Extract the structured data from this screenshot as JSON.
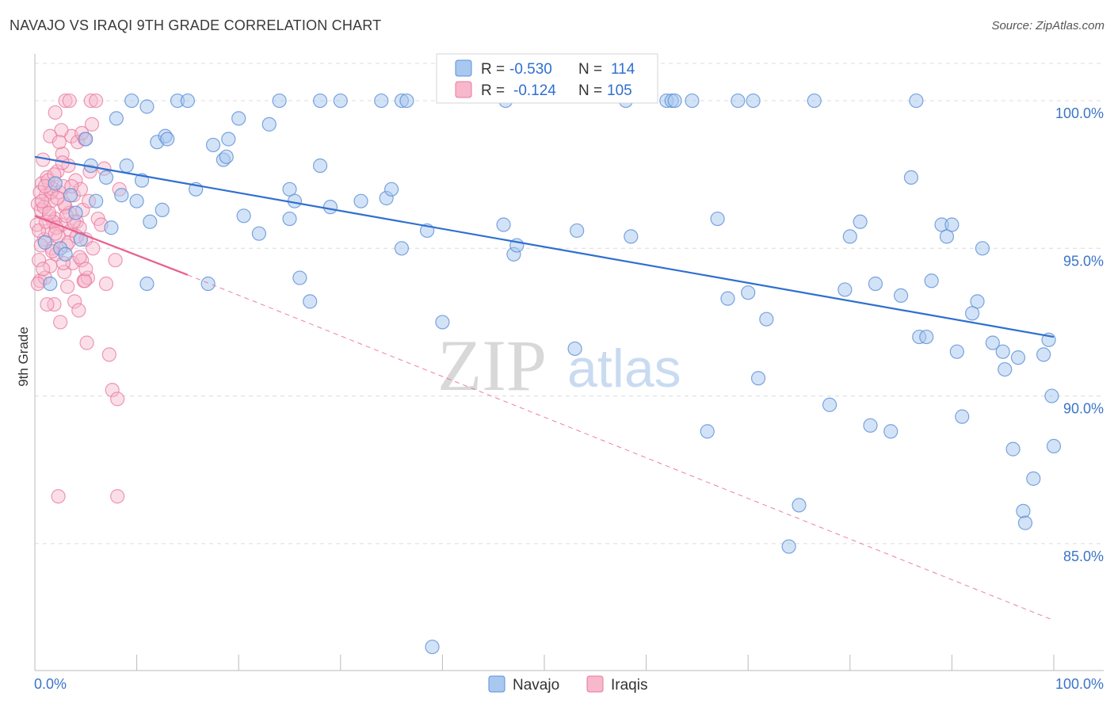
{
  "title": "NAVAJO VS IRAQI 9TH GRADE CORRELATION CHART",
  "source": "Source: ZipAtlas.com",
  "watermark": {
    "zip": "ZIP",
    "atlas": "atlas"
  },
  "colors": {
    "navajo_fill": "#a8c8f0",
    "navajo_stroke": "#5b8fd6",
    "navajo_line": "#2e6fd0",
    "iraqi_fill": "#f7b8cc",
    "iraqi_stroke": "#e8789e",
    "iraqi_line": "#e8608c",
    "grid": "#dcdcdc",
    "axis_label": "#3b74c9"
  },
  "legend": {
    "navajo": {
      "r_label": "R =",
      "r_value": "-0.530",
      "n_label": "N =",
      "n_value": "114"
    },
    "iraqi": {
      "r_label": "R =",
      "r_value": "-0.124",
      "n_label": "N =",
      "n_value": "105"
    }
  },
  "chart_data": {
    "type": "scatter",
    "title": "NAVAJO VS IRAQI 9TH GRADE CORRELATION CHART",
    "xlabel": "",
    "ylabel": "9th Grade",
    "x_tick_labels": [
      "0.0%",
      "100.0%"
    ],
    "y_tick_labels": [
      "100.0%",
      "95.0%",
      "90.0%",
      "85.0%"
    ],
    "y_ticks": [
      100,
      95,
      90,
      85
    ],
    "xlim": [
      0,
      100
    ],
    "ylim": [
      80.7,
      101.8
    ],
    "series": [
      {
        "name": "Navajo",
        "trend": {
          "x": [
            0,
            100
          ],
          "y": [
            98.1,
            92.0
          ],
          "dashed_to": null
        },
        "points": [
          [
            1,
            95.2
          ],
          [
            1.5,
            93.8
          ],
          [
            2,
            97.2
          ],
          [
            2.5,
            95
          ],
          [
            3,
            94.8
          ],
          [
            3.5,
            96.8
          ],
          [
            4,
            96.2
          ],
          [
            4.5,
            95.3
          ],
          [
            5,
            98.7
          ],
          [
            5.5,
            97.8
          ],
          [
            6,
            96.6
          ],
          [
            7,
            97.4
          ],
          [
            7.5,
            95.7
          ],
          [
            8,
            99.4
          ],
          [
            8.5,
            96.8
          ],
          [
            9,
            97.8
          ],
          [
            9.5,
            100
          ],
          [
            10,
            96.6
          ],
          [
            10.5,
            97.3
          ],
          [
            11,
            99.8
          ],
          [
            11.3,
            95.9
          ],
          [
            12,
            98.6
          ],
          [
            12.5,
            96.3
          ],
          [
            12.8,
            98.8
          ],
          [
            13,
            98.7
          ],
          [
            14,
            100
          ],
          [
            15,
            100
          ],
          [
            15.8,
            97
          ],
          [
            17,
            93.8
          ],
          [
            17.5,
            98.5
          ],
          [
            18.5,
            98
          ],
          [
            18.8,
            98.1
          ],
          [
            19,
            98.7
          ],
          [
            20,
            99.4
          ],
          [
            20.5,
            96.1
          ],
          [
            22,
            95.5
          ],
          [
            23,
            99.2
          ],
          [
            24,
            100
          ],
          [
            25,
            97
          ],
          [
            25.5,
            96.6
          ],
          [
            25,
            96
          ],
          [
            26,
            94
          ],
          [
            27,
            93.2
          ],
          [
            28,
            97.8
          ],
          [
            28,
            100
          ],
          [
            29,
            96.4
          ],
          [
            30,
            100
          ],
          [
            32,
            96.6
          ],
          [
            34,
            100
          ],
          [
            34.5,
            96.7
          ],
          [
            35,
            97
          ],
          [
            36,
            95
          ],
          [
            36,
            100
          ],
          [
            36.5,
            100
          ],
          [
            38.5,
            95.6
          ],
          [
            40,
            92.5
          ],
          [
            46,
            95.8
          ],
          [
            46.2,
            100
          ],
          [
            47,
            94.8
          ],
          [
            47.3,
            95.1
          ],
          [
            53,
            91.6
          ],
          [
            53.2,
            95.6
          ],
          [
            58,
            100
          ],
          [
            58.5,
            95.4
          ],
          [
            62,
            100
          ],
          [
            62.5,
            100
          ],
          [
            62.8,
            100
          ],
          [
            64.5,
            100
          ],
          [
            66,
            88.8
          ],
          [
            67,
            96
          ],
          [
            68,
            93.3
          ],
          [
            69,
            100
          ],
          [
            70,
            93.5
          ],
          [
            70.5,
            100
          ],
          [
            71,
            90.6
          ],
          [
            71.8,
            92.6
          ],
          [
            74,
            84.9
          ],
          [
            75,
            86.3
          ],
          [
            76.5,
            100
          ],
          [
            78,
            89.7
          ],
          [
            79.5,
            93.6
          ],
          [
            80,
            95.4
          ],
          [
            81,
            95.9
          ],
          [
            82,
            89
          ],
          [
            82.5,
            93.8
          ],
          [
            84,
            88.8
          ],
          [
            85,
            93.4
          ],
          [
            86,
            97.4
          ],
          [
            86.5,
            100
          ],
          [
            86.8,
            92
          ],
          [
            87.5,
            92
          ],
          [
            88,
            93.9
          ],
          [
            89,
            95.8
          ],
          [
            89.5,
            95.4
          ],
          [
            90,
            95.8
          ],
          [
            90.5,
            91.5
          ],
          [
            91,
            89.3
          ],
          [
            92,
            92.8
          ],
          [
            92.5,
            93.2
          ],
          [
            93,
            95
          ],
          [
            94,
            91.8
          ],
          [
            95,
            91.5
          ],
          [
            95.2,
            90.9
          ],
          [
            96,
            88.2
          ],
          [
            96.5,
            91.3
          ],
          [
            97,
            86.1
          ],
          [
            97.2,
            85.7
          ],
          [
            98,
            87.2
          ],
          [
            99,
            91.4
          ],
          [
            99.5,
            91.9
          ],
          [
            99.8,
            90
          ],
          [
            100,
            88.3
          ],
          [
            39,
            81.5
          ],
          [
            11,
            93.8
          ]
        ]
      },
      {
        "name": "Iraqis",
        "trend": {
          "x": [
            0,
            15
          ],
          "y": [
            96.1,
            94.1
          ],
          "dashed_to": [
            100,
            82.4
          ]
        },
        "points": [
          [
            0.2,
            95.8
          ],
          [
            0.3,
            96.5
          ],
          [
            0.4,
            94.6
          ],
          [
            0.5,
            93.9
          ],
          [
            0.6,
            96.3
          ],
          [
            0.7,
            97.2
          ],
          [
            0.8,
            98
          ],
          [
            0.9,
            95.3
          ],
          [
            1,
            94
          ],
          [
            1.1,
            96.8
          ],
          [
            1.2,
            97.4
          ],
          [
            1.3,
            95.6
          ],
          [
            1.4,
            96.1
          ],
          [
            1.5,
            94.4
          ],
          [
            1.6,
            96.6
          ],
          [
            1.7,
            95
          ],
          [
            1.8,
            97
          ],
          [
            1.9,
            93.1
          ],
          [
            2,
            96
          ],
          [
            2.1,
            94.8
          ],
          [
            2.2,
            97.6
          ],
          [
            2.3,
            95.4
          ],
          [
            2.4,
            96.9
          ],
          [
            2.5,
            92.5
          ],
          [
            2.6,
            95.8
          ],
          [
            2.7,
            98.2
          ],
          [
            2.8,
            97.1
          ],
          [
            2.9,
            94.2
          ],
          [
            3,
            96.4
          ],
          [
            3.1,
            95.1
          ],
          [
            3.2,
            93.7
          ],
          [
            3.3,
            97.8
          ],
          [
            3.4,
            96.2
          ],
          [
            3.5,
            95.6
          ],
          [
            3.6,
            98.8
          ],
          [
            3.7,
            94.5
          ],
          [
            3.8,
            96.8
          ],
          [
            3.9,
            93.2
          ],
          [
            4,
            97.3
          ],
          [
            4.1,
            95.9
          ],
          [
            4.2,
            98.6
          ],
          [
            4.3,
            92.9
          ],
          [
            4.4,
            95.7
          ],
          [
            4.5,
            97
          ],
          [
            4.6,
            94.6
          ],
          [
            4.7,
            96.3
          ],
          [
            4.8,
            93.9
          ],
          [
            4.9,
            98.7
          ],
          [
            5,
            95.3
          ],
          [
            5.1,
            91.8
          ],
          [
            5.2,
            94
          ],
          [
            5.3,
            96.6
          ],
          [
            5.4,
            97.6
          ],
          [
            5.5,
            100
          ],
          [
            5.6,
            99.2
          ],
          [
            5.7,
            95
          ],
          [
            6,
            100
          ],
          [
            6.2,
            96
          ],
          [
            6.5,
            95.8
          ],
          [
            6.8,
            97.7
          ],
          [
            7,
            93.8
          ],
          [
            7.3,
            91.4
          ],
          [
            7.6,
            90.2
          ],
          [
            7.9,
            94.6
          ],
          [
            8.1,
            89.9
          ],
          [
            8.3,
            97
          ],
          [
            2.3,
            86.6
          ],
          [
            8.1,
            86.6
          ],
          [
            3,
            100
          ],
          [
            3.4,
            100
          ],
          [
            2,
            99.6
          ],
          [
            2.6,
            99
          ],
          [
            1.5,
            98.8
          ],
          [
            1.8,
            95.9
          ],
          [
            0.5,
            96.9
          ],
          [
            0.9,
            96.4
          ],
          [
            1.3,
            97.3
          ],
          [
            0.4,
            95.6
          ],
          [
            0.6,
            95.1
          ],
          [
            0.8,
            94.3
          ],
          [
            1.1,
            95.9
          ],
          [
            1.6,
            96.9
          ],
          [
            2.1,
            95.7
          ],
          [
            2.4,
            98.6
          ],
          [
            2.9,
            96.5
          ],
          [
            3.3,
            95.2
          ],
          [
            3.8,
            95.9
          ],
          [
            4.4,
            94.7
          ],
          [
            4.9,
            93.9
          ],
          [
            1,
            97.1
          ],
          [
            1.4,
            96.2
          ],
          [
            1.7,
            94.9
          ],
          [
            2,
            95.5
          ],
          [
            2.2,
            96.7
          ],
          [
            2.7,
            97.9
          ],
          [
            3.1,
            96.1
          ],
          [
            3.6,
            97.1
          ],
          [
            4.1,
            95.4
          ],
          [
            4.6,
            98.9
          ],
          [
            5,
            94.3
          ],
          [
            0.3,
            93.8
          ],
          [
            0.7,
            96.6
          ],
          [
            1.2,
            93.1
          ],
          [
            1.9,
            97.5
          ],
          [
            2.8,
            94.5
          ]
        ]
      }
    ],
    "legend_position": "top-center",
    "bottom_legend": [
      "Navajo",
      "Iraqis"
    ]
  }
}
